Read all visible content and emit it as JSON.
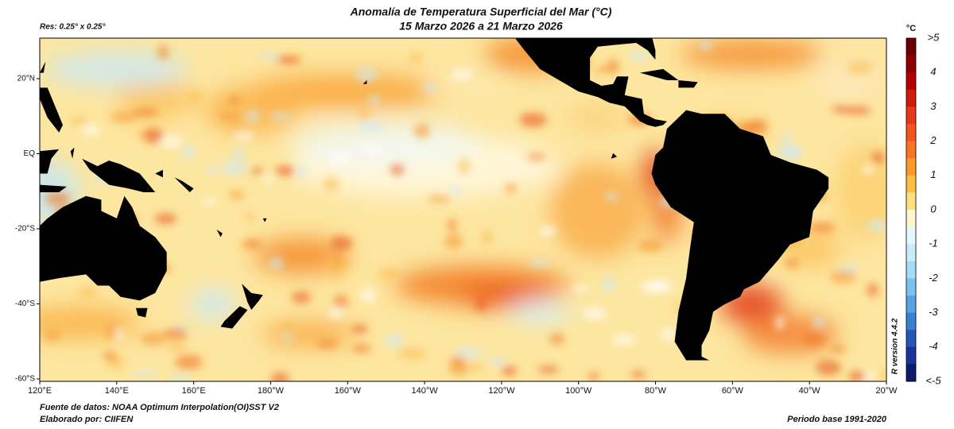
{
  "title": "Anomalía de Temperatura Superficial del Mar (°C)",
  "subtitle": "15 Marzo 2026 a 21 Marzo 2026",
  "resolution": "Res: 0.25° x 0.25°",
  "unit": "°C",
  "lat_labels": [
    "20°N",
    "EQ",
    "-20°S",
    "-40°S",
    "-60°S"
  ],
  "lon_labels": [
    "120°E",
    "140°E",
    "160°E",
    "180°W",
    "160°W",
    "140°W",
    "120°W",
    "100°W",
    "80°W",
    "60°W",
    "40°W",
    "20°W"
  ],
  "colorbar_labels": [
    ">5",
    "4",
    "3",
    "2",
    "1",
    "0",
    "-1",
    "-2",
    "-3",
    "-4",
    "<-5"
  ],
  "source": "Fuente de datos: NOAA Optimum Interpolation(OI)SST V2",
  "author": "Elaborado por: CIIFEN",
  "base_period": "Periodo base 1991-2020",
  "r_version": "R version 4.4.2"
}
